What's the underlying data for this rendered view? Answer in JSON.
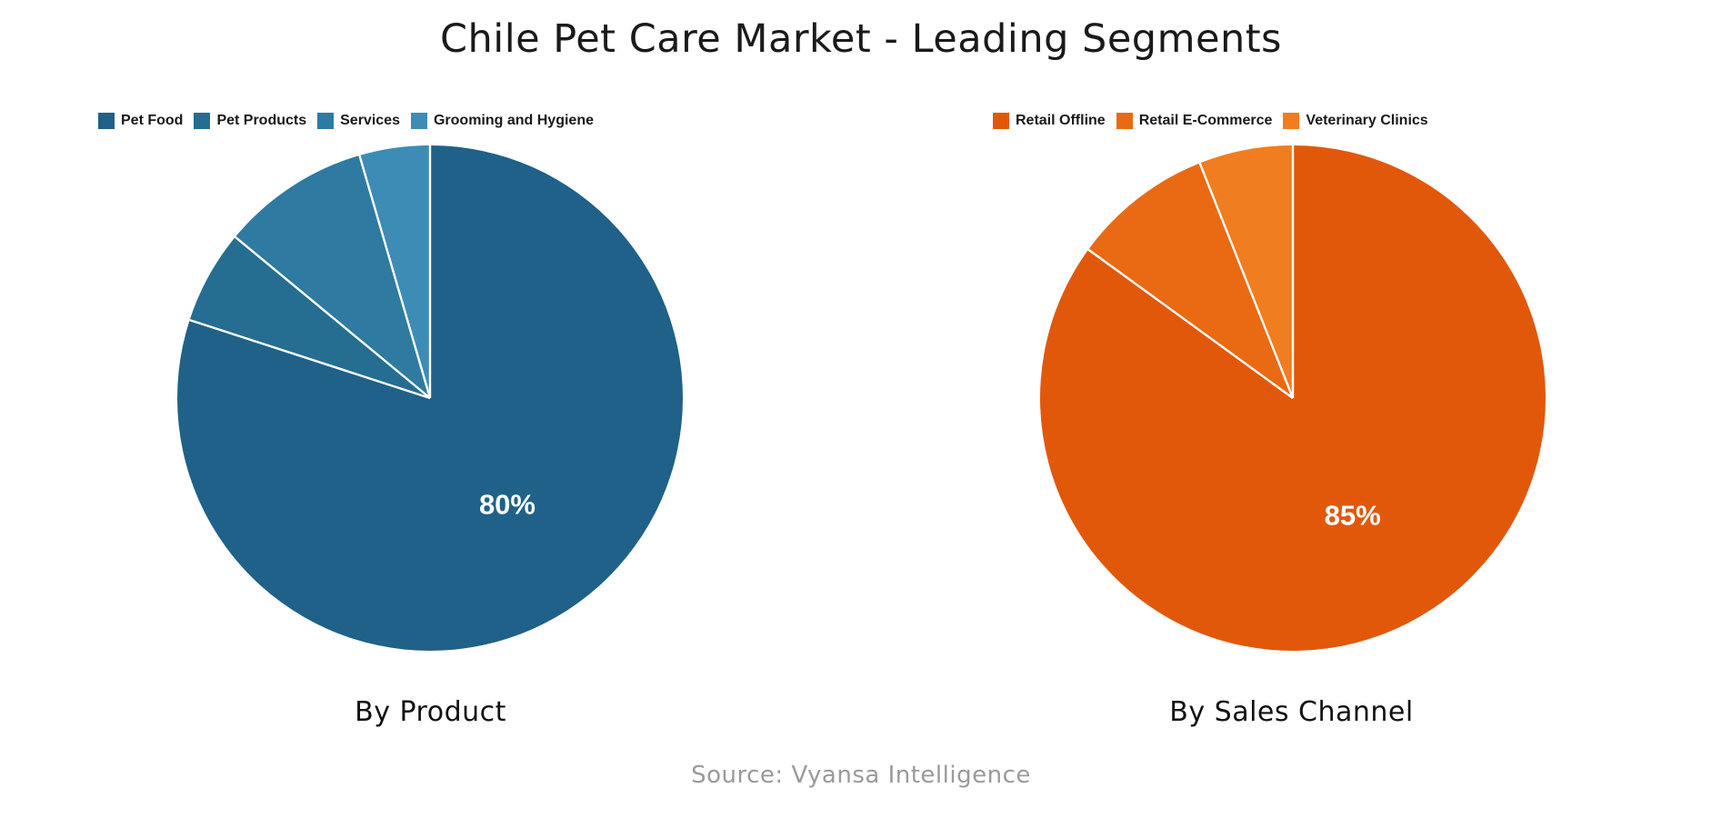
{
  "figure": {
    "title": "Chile Pet Care Market - Leading Segments",
    "source_note": "Source: Vyansa Intelligence",
    "background_color": "#ffffff",
    "title_color": "#1a1a1a",
    "caption_color": "#121212",
    "source_color": "#9a9a9a",
    "legend_text_color": "#1a1a1a",
    "separator_color": "#ffffff"
  },
  "chart_data": [
    {
      "type": "pie",
      "caption": "By Product",
      "legend_position": "top",
      "direction": "clockwise",
      "start_angle_deg": 0,
      "categories": [
        "Pet Food",
        "Pet Products",
        "Services",
        "Grooming and Hygiene"
      ],
      "values": [
        80,
        6,
        9.5,
        4.5
      ],
      "colors": [
        "#1f6189",
        "#266d92",
        "#2e7aa0",
        "#3d8cb6"
      ],
      "data_labels": [
        {
          "slice_index": 0,
          "text": "80%",
          "color": "#ffffff"
        }
      ]
    },
    {
      "type": "pie",
      "caption": "By Sales Channel",
      "legend_position": "top",
      "direction": "clockwise",
      "start_angle_deg": 0,
      "categories": [
        "Retail Offline",
        "Retail E-Commerce",
        "Veterinary Clinics"
      ],
      "values": [
        85,
        9,
        6
      ],
      "colors": [
        "#e2580b",
        "#e96a13",
        "#f07d1f"
      ],
      "data_labels": [
        {
          "slice_index": 0,
          "text": "85%",
          "color": "#ffffff"
        }
      ]
    }
  ]
}
